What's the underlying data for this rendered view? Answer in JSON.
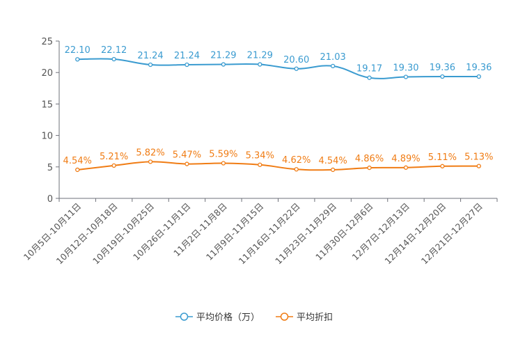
{
  "chart_data": {
    "type": "line",
    "title": "",
    "xlabel": "",
    "ylabel": "",
    "ylim": [
      0,
      25
    ],
    "yticks": [
      0,
      5,
      10,
      15,
      20,
      25
    ],
    "grid": false,
    "legend_position": "bottom-center",
    "categories": [
      "10月5日-10月11日",
      "10月12日-10月18日",
      "10月19日-10月25日",
      "10月26日-11月1日",
      "11月2日-11月8日",
      "11月9日-11月15日",
      "11月16日-11月22日",
      "11月23日-11月29日",
      "11月30日-12月6日",
      "12月7日-12月13日",
      "12月14日-12月20日",
      "12月21日-12月27日"
    ],
    "series": [
      {
        "name": "平均价格（万）",
        "color": "#3a9bd0",
        "values": [
          22.1,
          22.12,
          21.24,
          21.24,
          21.29,
          21.29,
          20.6,
          21.03,
          19.17,
          19.3,
          19.36,
          19.36
        ],
        "labels": [
          "22.10",
          "22.12",
          "21.24",
          "21.24",
          "21.29",
          "21.29",
          "20.60",
          "21.03",
          "19.17",
          "19.30",
          "19.36",
          "19.36"
        ]
      },
      {
        "name": "平均折扣",
        "color": "#f07c14",
        "values": [
          4.54,
          5.21,
          5.82,
          5.47,
          5.59,
          5.34,
          4.62,
          4.54,
          4.86,
          4.89,
          5.11,
          5.13
        ],
        "labels": [
          "4.54%",
          "5.21%",
          "5.82%",
          "5.47%",
          "5.59%",
          "5.34%",
          "4.62%",
          "4.54%",
          "4.86%",
          "4.89%",
          "5.11%",
          "5.13%"
        ]
      }
    ]
  }
}
